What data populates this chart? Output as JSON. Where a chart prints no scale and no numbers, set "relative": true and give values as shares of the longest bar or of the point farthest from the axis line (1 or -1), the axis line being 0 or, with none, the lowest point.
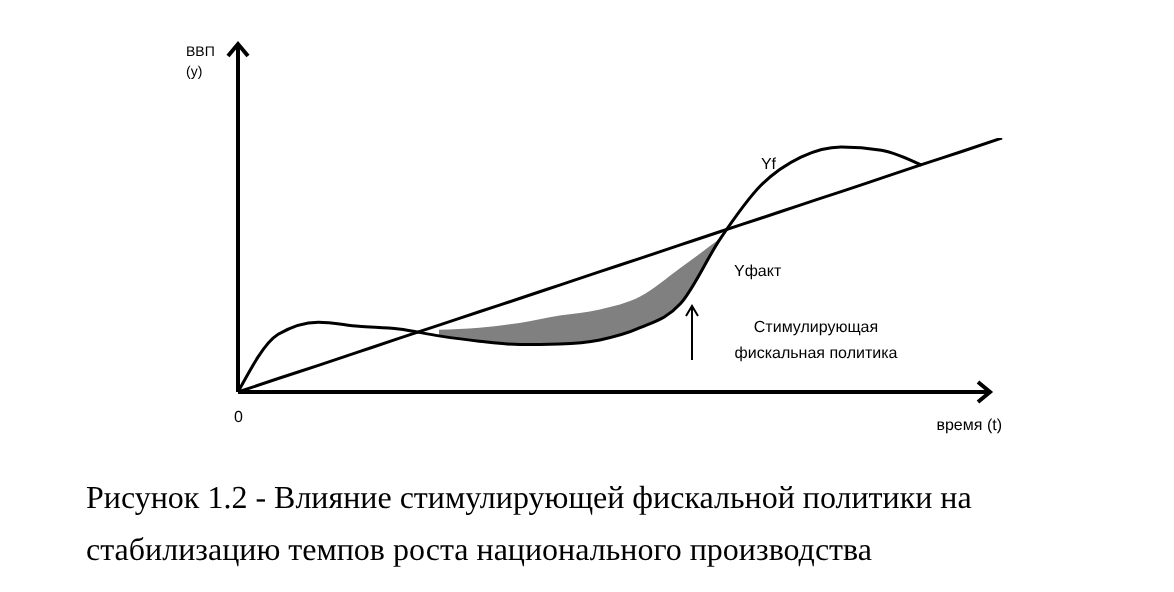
{
  "chart_data": {
    "type": "line",
    "relative": true,
    "title": "Рисунок 1.2 - Влияние стимулирующей фискальной политики на стабилизацию темпов роста национального производства",
    "xlabel": "время (t)",
    "ylabel": "ВВП (y)",
    "annotations": [
      "0",
      "Стимулирующая фискальная политика",
      "Yфакт"
    ],
    "categories": [
      null,
      null,
      null,
      null,
      null,
      null,
      null,
      null,
      null,
      null,
      null,
      null,
      null,
      null,
      null,
      null,
      null,
      null,
      null,
      null
    ],
    "tick_labels": false,
    "grid": false,
    "legend": false,
    "marker": "none",
    "line_style": "solid",
    "series": [
      {
        "color": "#000000",
        "values": [
          0,
          0.053,
          0.105,
          0.158,
          0.211,
          0.263,
          0.316,
          0.368,
          0.421,
          0.474,
          0.526,
          0.579,
          0.632,
          0.684,
          0.737,
          0.789,
          0.842,
          0.895,
          0.947,
          1
        ]
      },
      {
        "name": "Yf",
        "color": "#000000",
        "values": [
          0,
          0.227,
          0.275,
          0.259,
          0.248,
          0.221,
          0.2,
          0.187,
          0.189,
          0.205,
          0.253,
          0.347,
          0.605,
          0.813,
          0.925,
          0.965,
          0.952,
          0.893,
          null,
          null
        ],
        "lower": [
          null,
          null,
          null,
          null,
          null,
          0.221,
          0.2,
          0.187,
          0.189,
          0.205,
          0.253,
          0.347,
          0.605,
          null,
          null,
          null,
          null,
          null,
          null,
          null
        ],
        "upper": [
          null,
          null,
          null,
          null,
          null,
          0.245,
          0.253,
          0.272,
          0.301,
          0.325,
          0.376,
          0.488,
          0.605,
          null,
          null,
          null,
          null,
          null,
          null,
          null
        ]
      }
    ]
  }
}
